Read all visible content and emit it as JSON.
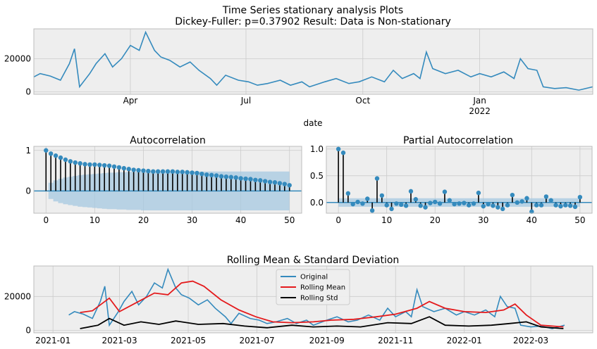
{
  "chart_data": [
    {
      "type": "line",
      "title": "Time Series stationary analysis Plots",
      "subtitle": "Dickey-Fuller: p=0.37902 Result: Data is Non-stationary",
      "xlabel": "date",
      "x_ticks": [
        {
          "label": "Apr",
          "sub": "",
          "date": "2021-04-01"
        },
        {
          "label": "Jul",
          "sub": "",
          "date": "2021-07-01"
        },
        {
          "label": "Oct",
          "sub": "",
          "date": "2021-10-01"
        },
        {
          "label": "Jan",
          "sub": "2022",
          "date": "2022-01-01"
        }
      ],
      "y_ticks": [
        0,
        20000
      ],
      "xlim": [
        "2021-01-15",
        "2022-03-31"
      ],
      "ylim": [
        -1500,
        38000
      ],
      "grid": true,
      "series": [
        {
          "name": "",
          "color": "#348abd",
          "points": [
            [
              "2021-01-15",
              9000
            ],
            [
              "2021-01-20",
              11000
            ],
            [
              "2021-01-28",
              9500
            ],
            [
              "2021-02-05",
              7000
            ],
            [
              "2021-02-12",
              17000
            ],
            [
              "2021-02-16",
              26000
            ],
            [
              "2021-02-20",
              3000
            ],
            [
              "2021-02-28",
              11000
            ],
            [
              "2021-03-05",
              17000
            ],
            [
              "2021-03-12",
              23000
            ],
            [
              "2021-03-18",
              15000
            ],
            [
              "2021-03-25",
              20000
            ],
            [
              "2021-04-01",
              28000
            ],
            [
              "2021-04-08",
              25000
            ],
            [
              "2021-04-13",
              36000
            ],
            [
              "2021-04-20",
              25000
            ],
            [
              "2021-04-25",
              21000
            ],
            [
              "2021-05-02",
              19000
            ],
            [
              "2021-05-10",
              15000
            ],
            [
              "2021-05-18",
              18000
            ],
            [
              "2021-05-25",
              13000
            ],
            [
              "2021-06-03",
              8000
            ],
            [
              "2021-06-08",
              4000
            ],
            [
              "2021-06-15",
              10000
            ],
            [
              "2021-06-25",
              7000
            ],
            [
              "2021-07-03",
              6000
            ],
            [
              "2021-07-10",
              4000
            ],
            [
              "2021-07-18",
              5000
            ],
            [
              "2021-07-28",
              7000
            ],
            [
              "2021-08-05",
              4000
            ],
            [
              "2021-08-14",
              6000
            ],
            [
              "2021-08-20",
              3000
            ],
            [
              "2021-09-01",
              6000
            ],
            [
              "2021-09-10",
              8000
            ],
            [
              "2021-09-20",
              5000
            ],
            [
              "2021-09-28",
              6000
            ],
            [
              "2021-10-08",
              9000
            ],
            [
              "2021-10-18",
              6000
            ],
            [
              "2021-10-25",
              13000
            ],
            [
              "2021-11-01",
              8000
            ],
            [
              "2021-11-10",
              11000
            ],
            [
              "2021-11-15",
              8000
            ],
            [
              "2021-11-20",
              24000
            ],
            [
              "2021-11-25",
              14000
            ],
            [
              "2021-12-05",
              11000
            ],
            [
              "2021-12-15",
              13000
            ],
            [
              "2021-12-25",
              9000
            ],
            [
              "2022-01-01",
              11000
            ],
            [
              "2022-01-10",
              9000
            ],
            [
              "2022-01-20",
              12000
            ],
            [
              "2022-01-28",
              8000
            ],
            [
              "2022-02-02",
              20000
            ],
            [
              "2022-02-08",
              14000
            ],
            [
              "2022-02-15",
              13000
            ],
            [
              "2022-02-20",
              3000
            ],
            [
              "2022-03-01",
              2000
            ],
            [
              "2022-03-10",
              2500
            ],
            [
              "2022-03-20",
              1000
            ],
            [
              "2022-03-31",
              3000
            ]
          ]
        }
      ]
    },
    {
      "type": "bar",
      "title": "Autocorrelation",
      "xlim": [
        -2.5,
        52.5
      ],
      "ylim": [
        -0.55,
        1.1
      ],
      "x_ticks": [
        0,
        10,
        20,
        30,
        40,
        50
      ],
      "y_ticks": [
        0,
        1
      ],
      "grid": true,
      "values": [
        1.0,
        0.92,
        0.87,
        0.82,
        0.77,
        0.73,
        0.7,
        0.68,
        0.66,
        0.65,
        0.65,
        0.64,
        0.63,
        0.62,
        0.6,
        0.58,
        0.56,
        0.54,
        0.52,
        0.51,
        0.5,
        0.49,
        0.48,
        0.48,
        0.48,
        0.48,
        0.48,
        0.47,
        0.47,
        0.46,
        0.45,
        0.44,
        0.42,
        0.4,
        0.39,
        0.38,
        0.36,
        0.35,
        0.34,
        0.33,
        0.31,
        0.3,
        0.29,
        0.27,
        0.26,
        0.24,
        0.22,
        0.21,
        0.19,
        0.17,
        0.14
      ],
      "confidence_band": [
        0.0,
        0.2,
        0.26,
        0.3,
        0.33,
        0.35,
        0.37,
        0.39,
        0.4,
        0.41,
        0.42,
        0.43,
        0.44,
        0.45,
        0.45,
        0.46,
        0.46,
        0.47,
        0.47,
        0.47,
        0.48,
        0.48,
        0.48,
        0.48,
        0.48,
        0.48,
        0.48,
        0.48,
        0.48,
        0.48,
        0.48,
        0.48,
        0.48,
        0.48,
        0.48,
        0.48,
        0.48,
        0.48,
        0.48,
        0.48,
        0.48,
        0.48,
        0.48,
        0.48,
        0.48,
        0.48,
        0.48,
        0.48,
        0.48,
        0.48,
        0.48
      ],
      "colors": {
        "stem": "#000000",
        "marker": "#348abd",
        "band": "#a6c8e0",
        "zero": "#348abd"
      }
    },
    {
      "type": "bar",
      "title": "Partial Autocorrelation",
      "xlim": [
        -2.5,
        52.5
      ],
      "ylim": [
        -0.2,
        1.05
      ],
      "x_ticks": [
        0,
        10,
        20,
        30,
        40,
        50
      ],
      "y_ticks": [
        0.0,
        0.5,
        1.0
      ],
      "grid": true,
      "values": [
        1.0,
        0.93,
        0.17,
        -0.03,
        0.01,
        -0.02,
        0.07,
        -0.15,
        0.45,
        0.13,
        -0.05,
        -0.12,
        -0.02,
        -0.04,
        -0.06,
        0.21,
        0.06,
        -0.06,
        -0.09,
        -0.01,
        0.01,
        -0.02,
        0.2,
        0.04,
        -0.03,
        -0.02,
        -0.01,
        -0.05,
        -0.02,
        0.18,
        -0.07,
        -0.03,
        -0.06,
        -0.09,
        -0.12,
        -0.05,
        0.14,
        0.0,
        0.02,
        0.08,
        -0.17,
        -0.05,
        -0.05,
        0.11,
        0.04,
        -0.05,
        -0.07,
        -0.05,
        -0.06,
        -0.08,
        0.1
      ],
      "confidence_band": 0.08,
      "colors": {
        "stem": "#000000",
        "marker": "#348abd",
        "band": "#a6c8e0",
        "zero": "#348abd"
      }
    },
    {
      "type": "line",
      "title": "Rolling Mean & Standard Deviation",
      "x_ticks": [
        "2021-01",
        "2021-03",
        "2021-05",
        "2021-07",
        "2021-09",
        "2021-11",
        "2022-01",
        "2022-03"
      ],
      "y_ticks": [
        0,
        20000
      ],
      "xlim": [
        "2020-12-15",
        "2022-04-25"
      ],
      "ylim": [
        -1500,
        38000
      ],
      "grid": true,
      "legend": {
        "position": "top-center",
        "entries": [
          "Original",
          "Rolling Mean",
          "Rolling Std"
        ]
      },
      "series": [
        {
          "name": "Original",
          "color": "#348abd",
          "points": [
            [
              "2021-01-15",
              9000
            ],
            [
              "2021-01-20",
              11000
            ],
            [
              "2021-01-28",
              9500
            ],
            [
              "2021-02-05",
              7000
            ],
            [
              "2021-02-12",
              17000
            ],
            [
              "2021-02-16",
              26000
            ],
            [
              "2021-02-20",
              3000
            ],
            [
              "2021-02-28",
              11000
            ],
            [
              "2021-03-05",
              17000
            ],
            [
              "2021-03-12",
              23000
            ],
            [
              "2021-03-18",
              15000
            ],
            [
              "2021-03-25",
              20000
            ],
            [
              "2021-04-01",
              28000
            ],
            [
              "2021-04-08",
              25000
            ],
            [
              "2021-04-13",
              36000
            ],
            [
              "2021-04-20",
              25000
            ],
            [
              "2021-04-25",
              21000
            ],
            [
              "2021-05-02",
              19000
            ],
            [
              "2021-05-10",
              15000
            ],
            [
              "2021-05-18",
              18000
            ],
            [
              "2021-05-25",
              13000
            ],
            [
              "2021-06-03",
              8000
            ],
            [
              "2021-06-08",
              4000
            ],
            [
              "2021-06-15",
              10000
            ],
            [
              "2021-06-25",
              7000
            ],
            [
              "2021-07-03",
              6000
            ],
            [
              "2021-07-10",
              4000
            ],
            [
              "2021-07-18",
              5000
            ],
            [
              "2021-07-28",
              7000
            ],
            [
              "2021-08-05",
              4000
            ],
            [
              "2021-08-14",
              6000
            ],
            [
              "2021-08-20",
              3000
            ],
            [
              "2021-09-01",
              6000
            ],
            [
              "2021-09-10",
              8000
            ],
            [
              "2021-09-20",
              5000
            ],
            [
              "2021-09-28",
              6000
            ],
            [
              "2021-10-08",
              9000
            ],
            [
              "2021-10-18",
              6000
            ],
            [
              "2021-10-25",
              13000
            ],
            [
              "2021-11-01",
              8000
            ],
            [
              "2021-11-10",
              11000
            ],
            [
              "2021-11-15",
              8000
            ],
            [
              "2021-11-20",
              24000
            ],
            [
              "2021-11-25",
              14000
            ],
            [
              "2021-12-05",
              11000
            ],
            [
              "2021-12-15",
              13000
            ],
            [
              "2021-12-25",
              9000
            ],
            [
              "2022-01-01",
              11000
            ],
            [
              "2022-01-10",
              9000
            ],
            [
              "2022-01-20",
              12000
            ],
            [
              "2022-01-28",
              8000
            ],
            [
              "2022-02-02",
              20000
            ],
            [
              "2022-02-08",
              14000
            ],
            [
              "2022-02-15",
              13000
            ],
            [
              "2022-02-20",
              3000
            ],
            [
              "2022-03-01",
              2000
            ],
            [
              "2022-03-10",
              2500
            ],
            [
              "2022-03-20",
              1000
            ],
            [
              "2022-03-31",
              3000
            ]
          ]
        },
        {
          "name": "Rolling Mean",
          "color": "#e41a1c",
          "points": [
            [
              "2021-01-25",
              10500
            ],
            [
              "2021-02-05",
              11500
            ],
            [
              "2021-02-20",
              19000
            ],
            [
              "2021-03-01",
              11000
            ],
            [
              "2021-03-15",
              16000
            ],
            [
              "2021-04-01",
              22000
            ],
            [
              "2021-04-13",
              21000
            ],
            [
              "2021-04-25",
              28000
            ],
            [
              "2021-05-05",
              29000
            ],
            [
              "2021-05-15",
              26000
            ],
            [
              "2021-05-30",
              18000
            ],
            [
              "2021-06-15",
              12000
            ],
            [
              "2021-06-30",
              8000
            ],
            [
              "2021-07-15",
              5000
            ],
            [
              "2021-08-01",
              4500
            ],
            [
              "2021-08-20",
              5000
            ],
            [
              "2021-09-05",
              6000
            ],
            [
              "2021-09-25",
              6500
            ],
            [
              "2021-10-15",
              8000
            ],
            [
              "2021-11-01",
              9500
            ],
            [
              "2021-11-20",
              13000
            ],
            [
              "2021-12-01",
              17000
            ],
            [
              "2021-12-15",
              13000
            ],
            [
              "2022-01-01",
              11000
            ],
            [
              "2022-01-20",
              10500
            ],
            [
              "2022-02-05",
              12000
            ],
            [
              "2022-02-15",
              15500
            ],
            [
              "2022-02-25",
              9000
            ],
            [
              "2022-03-10",
              3000
            ],
            [
              "2022-03-30",
              2000
            ]
          ]
        },
        {
          "name": "Rolling Std",
          "color": "#000000",
          "points": [
            [
              "2021-01-25",
              1000
            ],
            [
              "2021-02-10",
              3000
            ],
            [
              "2021-02-20",
              7000
            ],
            [
              "2021-03-05",
              3000
            ],
            [
              "2021-03-20",
              5000
            ],
            [
              "2021-04-05",
              3500
            ],
            [
              "2021-04-20",
              5500
            ],
            [
              "2021-05-10",
              3500
            ],
            [
              "2021-06-01",
              4000
            ],
            [
              "2021-06-20",
              2500
            ],
            [
              "2021-07-10",
              1500
            ],
            [
              "2021-08-01",
              3000
            ],
            [
              "2021-08-20",
              2000
            ],
            [
              "2021-09-10",
              2500
            ],
            [
              "2021-10-01",
              2000
            ],
            [
              "2021-10-25",
              4500
            ],
            [
              "2021-11-15",
              4000
            ],
            [
              "2021-12-01",
              8000
            ],
            [
              "2021-12-15",
              3000
            ],
            [
              "2022-01-05",
              2500
            ],
            [
              "2022-01-25",
              3000
            ],
            [
              "2022-02-10",
              4000
            ],
            [
              "2022-02-25",
              5000
            ],
            [
              "2022-03-10",
              2000
            ],
            [
              "2022-03-30",
              1000
            ]
          ]
        }
      ]
    }
  ]
}
